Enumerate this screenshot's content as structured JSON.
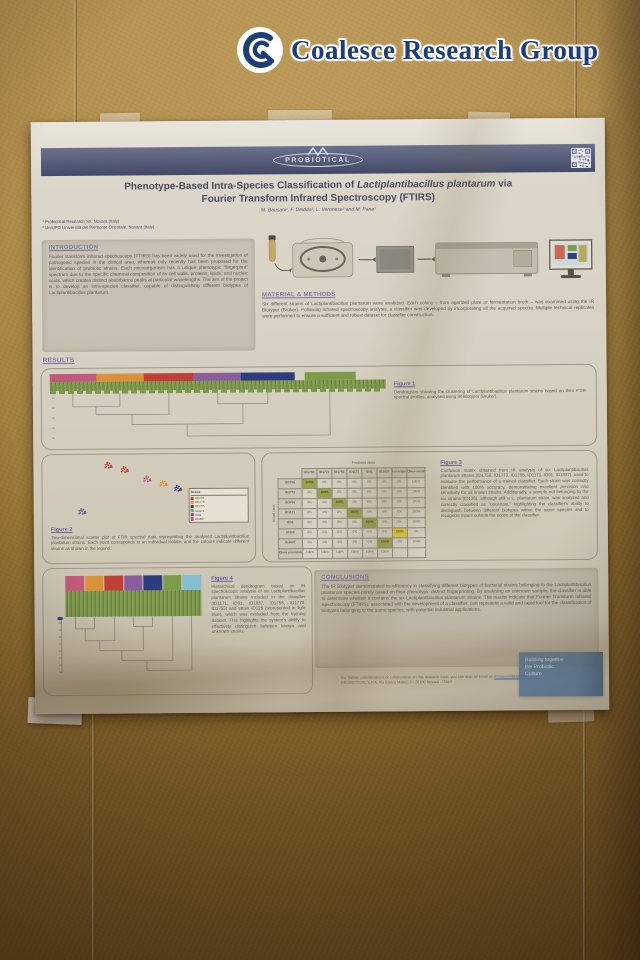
{
  "photo": {
    "watermark": {
      "text": "Coalesce Research Group",
      "color": "#1d3f77"
    },
    "wall_color": "#a8833f"
  },
  "poster": {
    "brand": {
      "name": "PROBIOTICAL"
    },
    "title": {
      "parts": [
        "Phenotype-Based Intra-Species Classification of ",
        "Lactiplantibacillus plantarum",
        " via"
      ],
      "line2": "Fourier Transform Infrared Spectroscopy (FTIRS)"
    },
    "authors": "M. Bausani¹, F. Deidda¹, L. Veronese² and M. Pane¹",
    "affiliations": [
      "¹ Probiotical Research Srl, Novara (Italy)",
      "² UniUPO Università del Piemonte Orientale, Novara (Italy)"
    ],
    "sections": {
      "introduction": {
        "heading": "INTRODUCTION",
        "body": "Fourier transform infrared spectroscopy (FTIRS) has been widely used for the investigation of pathogenic species in the clinical area, whereas only recently has been proposed for the identification of probiotic strains. Each microorganism has a unique phenotypic \"fingerprint\" spectrum due to the specific chemical composition of its cell walls, proteins, lipids, and nucleic acids, which creates distinct absorbance peaks at particular wavelengths. The aim of the project is to develop an intra-species classifier, capable of distinguishing different biotypes of Lactiplantibacillus plantarum."
      },
      "methods": {
        "heading": "MATERIAL & METHODS",
        "body": "Six different strains of Lactiplantibacillus plantarum were analyzed. Each colony – from agarized plate or fermentation broth – was examined using the IR Biotyper (Bruker). Following infrared spectroscopy analysis, a classifier was developed by incorporating all the acquired spectra. Multiple technical replicates were performed to ensure a sufficient and robust dataset for classifier construction."
      },
      "results": {
        "heading": "RESULTS"
      },
      "conclusions": {
        "heading": "CONCLUSIONS",
        "body": "The IR Biotyper demonstrated its efficiency in classifying different biotypes of bacterial strains belonging to the Lactiplantibacillus plantarum species purely based on their phenotypic distinct fingerprinting. By analysing an unknown sample, the classifier is able to determine whether it contains the six Lactiplantibacillus plantarum strains. The results indicate that Fourier Transform Infrared Spectroscopy (FTIRS), associated with the development of a classifier, can represent a valid and rapid tool for the classification of biotypes belonging to the same species, with potential industrial applications."
      }
    },
    "figures": {
      "fig1": {
        "label": "Figure 1",
        "caption": "Dendrogram showing the clustering of Lactiplantibacillus plantarum strains based on their FTIR spectral profiles, analysed using IR Biotyper (Bruker)."
      },
      "fig2": {
        "label": "Figure 2",
        "caption": "Two-dimensional scatter plot of FTIR spectral data representing the analysed Lactiplantibacillus plantarum strains. Each point corresponds to an individual isolate, and the colours indicate different strains as shown in the legend."
      },
      "fig3": {
        "label": "Figure 3",
        "caption": "Confusion matrix obtained from IR analysis of six Lactiplantibacillus plantarum strains (ID1756, ID1773, ID1755, ID1171, ID91, ID1837), used to evaluate the performance of a trained classifier. Each strain was correctly identified with 100% accuracy, demonstrating excellent precision and sensitivity for all known strains. Additionally, a sample not belonging to the six strains (ID126), although still a L. plantarum strain, was analyzed and correctly classified as \"uncertain,\" highlighting the classifier's ability to distinguish between different biotypes within the same species and to recognize inputs outside the scope of the classifier."
      },
      "fig4": {
        "label": "Figure 4",
        "caption": "Hierarchical dendrogram based on IR spectroscopic analysis of six Lactiplantibacillus plantarum strains included in the classifier (ID1171, ID91, ID1837, ID1756, ID1773, ID1755) and strain ID126 (represented in light blue), which was excluded from the training dataset. This highlights the system's ability to effectively distinguish between known and unknown strains."
      }
    },
    "footer": {
      "contact_prefix": "For further considerations or collaboration on this research topic, you can drop an email at: ",
      "contact_email": "m.bausani@probiotical.com",
      "address": "PROBIOTICAL S.P.A, Via Enrico Mattei, 3 - 28100 Novara - ITALY",
      "badge_lines": [
        "Building together",
        "the Probiotic",
        "Culture"
      ]
    }
  },
  "chart_data": [
    {
      "id": "figure1",
      "type": "dendrogram",
      "title": "FTIR clustering of Lactiplantibacillus plantarum strains (IR Biotyper)",
      "leaf_band_color": "#7c964a",
      "groups": [
        {
          "name": "cluster-pink",
          "color": "#c25a7d",
          "width_pct": 14
        },
        {
          "name": "cluster-orange",
          "color": "#d9913a",
          "width_pct": 14
        },
        {
          "name": "cluster-red",
          "color": "#bf4136",
          "width_pct": 15
        },
        {
          "name": "cluster-purple",
          "color": "#8a5d9e",
          "width_pct": 14
        },
        {
          "name": "cluster-navy",
          "color": "#2f3c7d",
          "width_pct": 16
        },
        {
          "name": "cluster-green",
          "color": "#7d9c4a",
          "width_pct": 15,
          "gap": true
        }
      ]
    },
    {
      "id": "figure2",
      "type": "scatter",
      "title": "Two-dimensional scatter plot of FTIR spectral data",
      "legend": {
        "title": "Strains"
      },
      "clusters": [
        {
          "label": "ID1756",
          "color": "#bf4136",
          "points_at": [
            [
              30,
              9
            ],
            [
              38,
              16
            ]
          ]
        },
        {
          "label": "ID1773",
          "color": "#d9913a",
          "points_at": [
            [
              57,
              38
            ]
          ]
        },
        {
          "label": "ID1755",
          "color": "#31407f",
          "points_at": [
            [
              64,
              46
            ]
          ]
        },
        {
          "label": "ID1171",
          "color": "#7d9c4a",
          "points_at": [
            [
              72,
              54
            ]
          ]
        },
        {
          "label": "ID91",
          "color": "#7a5596",
          "points_at": [
            [
              17,
              81
            ]
          ]
        },
        {
          "label": "ID1837",
          "color": "#c25a7d",
          "points_at": [
            [
              49,
              31
            ]
          ]
        }
      ]
    },
    {
      "id": "figure3",
      "type": "heatmap",
      "title": "Confusion matrix of trained classifier",
      "top_label": "Predicted class",
      "side_label": "Actual class",
      "col_headers": [
        "ID1756",
        "ID1773",
        "ID1755",
        "ID1171",
        "ID91",
        "ID1837",
        "uncertain",
        "Class recall"
      ],
      "rows": [
        {
          "label": "ID1756",
          "cells": [
            "100%",
            "0%",
            "0%",
            "0%",
            "0%",
            "0%",
            "0%",
            "100%"
          ]
        },
        {
          "label": "ID1773",
          "cells": [
            "0%",
            "100%",
            "0%",
            "0%",
            "0%",
            "0%",
            "0%",
            "100%"
          ]
        },
        {
          "label": "ID1755",
          "cells": [
            "0%",
            "0%",
            "100%",
            "0%",
            "0%",
            "0%",
            "0%",
            "100%"
          ]
        },
        {
          "label": "ID1171",
          "cells": [
            "0%",
            "0%",
            "0%",
            "100%",
            "0%",
            "0%",
            "0%",
            "100%"
          ]
        },
        {
          "label": "ID91",
          "cells": [
            "0%",
            "0%",
            "0%",
            "0%",
            "100%",
            "0%",
            "0%",
            "100%"
          ]
        },
        {
          "label": "ID126",
          "cells": [
            "0%",
            "0%",
            "0%",
            "0%",
            "0%",
            "0%",
            "100%",
            "0%"
          ]
        },
        {
          "label": "ID1837",
          "cells": [
            "0%",
            "0%",
            "0%",
            "0%",
            "0%",
            "100%",
            "0%",
            "100%"
          ]
        }
      ],
      "precision_row": {
        "label": "Class precision",
        "cells": [
          "100%",
          "100%",
          "100%",
          "100%",
          "100%",
          "100%",
          "",
          ""
        ]
      },
      "diag_color": "#97a351",
      "uncertain_color": "#d9c83e"
    },
    {
      "id": "figure4",
      "type": "dendrogram",
      "title": "Hierarchical dendrogram of six classifier strains plus excluded strain ID126",
      "groups": [
        {
          "name": "ID1171",
          "color": "#c25a7d"
        },
        {
          "name": "ID91",
          "color": "#d9913a"
        },
        {
          "name": "ID1837",
          "color": "#bf4136"
        },
        {
          "name": "ID1756",
          "color": "#8a5d9e"
        },
        {
          "name": "ID1773",
          "color": "#2f3c7d"
        },
        {
          "name": "ID1755",
          "color": "#7d9c4a"
        },
        {
          "name": "ID126",
          "color": "#85bdd1"
        }
      ]
    }
  ]
}
